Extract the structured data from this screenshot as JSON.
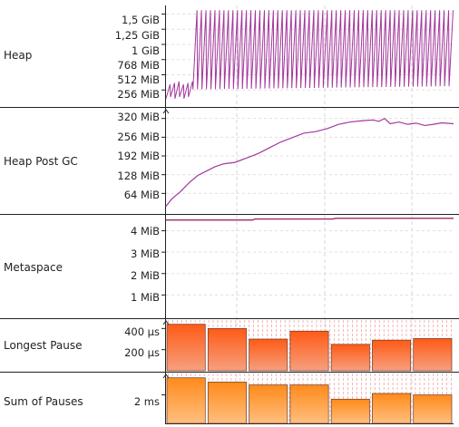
{
  "colors": {
    "heap": "#a3389c",
    "post_gc": "#a3389c",
    "metaspace": "#9b2a66",
    "pause_gradient_top": "#ff5a16",
    "pause_gradient_bottom": "#f6a07e",
    "sum_gradient_top": "#ff8a1a",
    "sum_gradient_bottom": "#ffbf80",
    "grid": "#cccccc",
    "pause_ticks": "#f2a3a3"
  },
  "lanes": {
    "heap": {
      "label": "Heap",
      "ticks": [
        "1,5 GiB",
        "1,25 GiB",
        "1 GiB",
        "768 MiB",
        "512 MiB",
        "256 MiB"
      ]
    },
    "post_gc": {
      "label": "Heap Post GC",
      "ticks": [
        "320 MiB",
        "256 MiB",
        "192 MiB",
        "128 MiB",
        "64 MiB"
      ]
    },
    "metaspace": {
      "label": "Metaspace",
      "ticks": [
        "4 MiB",
        "3 MiB",
        "2 MiB",
        "1 MiB"
      ]
    },
    "longest_pause": {
      "label": "Longest Pause",
      "ticks": [
        "400 µs",
        "200 µs"
      ]
    },
    "sum_pauses": {
      "label": "Sum of Pauses",
      "ticks": [
        "2 ms"
      ]
    }
  },
  "chart_data": [
    {
      "type": "line",
      "lane": "Heap",
      "unit": "MiB",
      "ylim": [
        0,
        1650
      ],
      "pattern": "sawtooth",
      "cycles": 64,
      "low_values_mib": [
        110,
        260
      ],
      "high_values_mib": [
        350,
        1600
      ],
      "x_range": [
        0,
        1
      ]
    },
    {
      "type": "line",
      "lane": "Heap Post GC",
      "unit": "MiB",
      "ylim": [
        0,
        350
      ],
      "points": [
        [
          0.0,
          20
        ],
        [
          0.02,
          45
        ],
        [
          0.05,
          70
        ],
        [
          0.08,
          100
        ],
        [
          0.11,
          125
        ],
        [
          0.14,
          140
        ],
        [
          0.17,
          155
        ],
        [
          0.2,
          165
        ],
        [
          0.24,
          170
        ],
        [
          0.28,
          185
        ],
        [
          0.32,
          200
        ],
        [
          0.36,
          220
        ],
        [
          0.4,
          240
        ],
        [
          0.44,
          255
        ],
        [
          0.48,
          270
        ],
        [
          0.52,
          275
        ],
        [
          0.56,
          285
        ],
        [
          0.6,
          300
        ],
        [
          0.64,
          308
        ],
        [
          0.68,
          312
        ],
        [
          0.72,
          315
        ],
        [
          0.74,
          310
        ],
        [
          0.76,
          320
        ],
        [
          0.78,
          302
        ],
        [
          0.81,
          308
        ],
        [
          0.84,
          300
        ],
        [
          0.87,
          304
        ],
        [
          0.9,
          296
        ],
        [
          0.93,
          300
        ],
        [
          0.96,
          305
        ],
        [
          1.0,
          302
        ]
      ]
    },
    {
      "type": "line",
      "lane": "Metaspace",
      "unit": "MiB",
      "ylim": [
        0,
        4.7
      ],
      "points": [
        [
          0.0,
          4.5
        ],
        [
          0.3,
          4.5
        ],
        [
          0.31,
          4.55
        ],
        [
          0.58,
          4.55
        ],
        [
          0.59,
          4.58
        ],
        [
          1.0,
          4.58
        ]
      ]
    },
    {
      "type": "bar",
      "lane": "Longest Pause",
      "unit": "µs",
      "ylim": [
        0,
        480
      ],
      "values": [
        440,
        400,
        300,
        375,
        250,
        290,
        305
      ]
    },
    {
      "type": "bar",
      "lane": "Sum of Pauses",
      "unit": "ms",
      "ylim": [
        0,
        3.5
      ],
      "values": [
        3.2,
        2.9,
        2.7,
        2.7,
        1.7,
        2.1,
        2.0
      ]
    }
  ]
}
